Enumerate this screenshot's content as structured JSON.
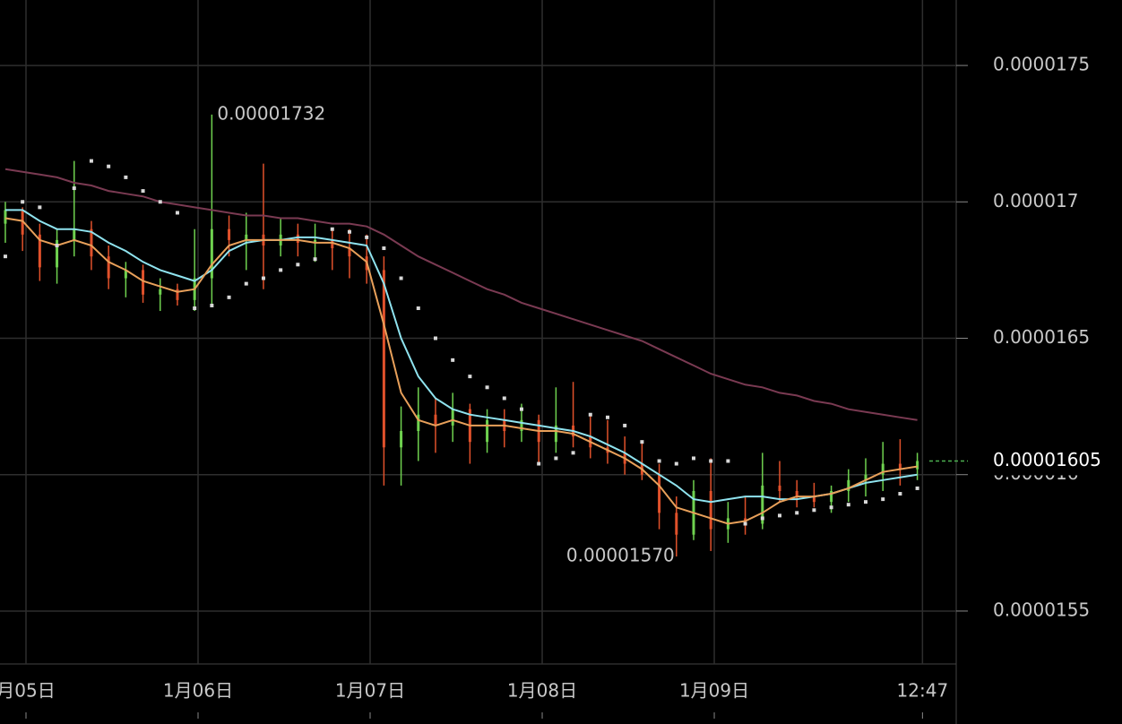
{
  "chart_data": {
    "type": "ohlc",
    "up_color": "#6fd14f",
    "down_color": "#e0512b",
    "x": [
      -0.12,
      -0.02,
      0.08,
      0.18,
      0.28,
      0.38,
      0.48,
      0.58,
      0.68,
      0.78,
      0.88,
      0.98,
      1.08,
      1.18,
      1.28,
      1.38,
      1.48,
      1.58,
      1.68,
      1.78,
      1.88,
      1.98,
      2.08,
      2.18,
      2.28,
      2.38,
      2.48,
      2.58,
      2.68,
      2.78,
      2.88,
      2.98,
      3.08,
      3.18,
      3.28,
      3.38,
      3.48,
      3.58,
      3.68,
      3.78,
      3.88,
      3.98,
      4.08,
      4.18,
      4.28,
      4.38,
      4.48,
      4.58,
      4.68,
      4.78,
      4.88,
      4.98,
      5.08,
      5.18
    ],
    "open": [
      1.692e-05,
      1.697e-05,
      1.688e-05,
      1.676e-05,
      1.686e-05,
      1.69e-05,
      1.68e-05,
      1.672e-05,
      1.675e-05,
      1.666e-05,
      1.668e-05,
      1.664e-05,
      1.672e-05,
      1.69e-05,
      1.686e-05,
      1.688e-05,
      1.684e-05,
      1.688e-05,
      1.685e-05,
      1.686e-05,
      1.683e-05,
      1.68e-05,
      1.675e-05,
      1.61e-05,
      1.616e-05,
      1.622e-05,
      1.618e-05,
      1.624e-05,
      1.612e-05,
      1.62e-05,
      1.616e-05,
      1.62e-05,
      1.612e-05,
      1.618e-05,
      1.614e-05,
      1.61e-05,
      1.608e-05,
      1.604e-05,
      1.6e-05,
      1.586e-05,
      1.578e-05,
      1.594e-05,
      1.58e-05,
      1.584e-05,
      1.582e-05,
      1.596e-05,
      1.594e-05,
      1.592e-05,
      1.59e-05,
      1.594e-05,
      1.598e-05,
      1.6e-05,
      1.604e-05,
      1.602e-05
    ],
    "high": [
      1.7e-05,
      1.698e-05,
      1.692e-05,
      1.69e-05,
      1.715e-05,
      1.693e-05,
      1.684e-05,
      1.678e-05,
      1.677e-05,
      1.672e-05,
      1.67e-05,
      1.69e-05,
      1.732e-05,
      1.695e-05,
      1.696e-05,
      1.714e-05,
      1.694e-05,
      1.692e-05,
      1.692e-05,
      1.69e-05,
      1.69e-05,
      1.688e-05,
      1.68e-05,
      1.625e-05,
      1.632e-05,
      1.628e-05,
      1.63e-05,
      1.626e-05,
      1.624e-05,
      1.624e-05,
      1.626e-05,
      1.622e-05,
      1.632e-05,
      1.634e-05,
      1.622e-05,
      1.62e-05,
      1.614e-05,
      1.612e-05,
      1.604e-05,
      1.592e-05,
      1.598e-05,
      1.606e-05,
      1.59e-05,
      1.592e-05,
      1.608e-05,
      1.605e-05,
      1.598e-05,
      1.597e-05,
      1.596e-05,
      1.602e-05,
      1.606e-05,
      1.612e-05,
      1.613e-05,
      1.608e-05
    ],
    "low": [
      1.685e-05,
      1.682e-05,
      1.671e-05,
      1.67e-05,
      1.68e-05,
      1.675e-05,
      1.668e-05,
      1.665e-05,
      1.663e-05,
      1.66e-05,
      1.662e-05,
      1.66e-05,
      1.662e-05,
      1.68e-05,
      1.675e-05,
      1.668e-05,
      1.68e-05,
      1.68e-05,
      1.678e-05,
      1.675e-05,
      1.672e-05,
      1.67e-05,
      1.596e-05,
      1.596e-05,
      1.605e-05,
      1.608e-05,
      1.612e-05,
      1.604e-05,
      1.608e-05,
      1.61e-05,
      1.612e-05,
      1.604e-05,
      1.608e-05,
      1.61e-05,
      1.606e-05,
      1.604e-05,
      1.6e-05,
      1.598e-05,
      1.58e-05,
      1.57e-05,
      1.576e-05,
      1.572e-05,
      1.575e-05,
      1.578e-05,
      1.58e-05,
      1.59e-05,
      1.588e-05,
      1.588e-05,
      1.586e-05,
      1.59e-05,
      1.592e-05,
      1.594e-05,
      1.596e-05,
      1.598e-05
    ],
    "close": [
      1.697e-05,
      1.688e-05,
      1.676e-05,
      1.686e-05,
      1.69e-05,
      1.68e-05,
      1.672e-05,
      1.675e-05,
      1.666e-05,
      1.668e-05,
      1.664e-05,
      1.672e-05,
      1.69e-05,
      1.686e-05,
      1.688e-05,
      1.684e-05,
      1.688e-05,
      1.685e-05,
      1.686e-05,
      1.683e-05,
      1.68e-05,
      1.675e-05,
      1.61e-05,
      1.616e-05,
      1.622e-05,
      1.618e-05,
      1.624e-05,
      1.612e-05,
      1.62e-05,
      1.616e-05,
      1.62e-05,
      1.612e-05,
      1.618e-05,
      1.614e-05,
      1.61e-05,
      1.608e-05,
      1.604e-05,
      1.6e-05,
      1.586e-05,
      1.578e-05,
      1.594e-05,
      1.58e-05,
      1.584e-05,
      1.582e-05,
      1.596e-05,
      1.594e-05,
      1.592e-05,
      1.59e-05,
      1.594e-05,
      1.598e-05,
      1.6e-05,
      1.604e-05,
      1.602e-05,
      1.605e-05
    ],
    "lines": [
      {
        "color": "#7a3a52",
        "values": [
          1.712e-05,
          1.711e-05,
          1.71e-05,
          1.709e-05,
          1.707e-05,
          1.706e-05,
          1.704e-05,
          1.703e-05,
          1.702e-05,
          1.7e-05,
          1.699e-05,
          1.698e-05,
          1.697e-05,
          1.696e-05,
          1.695e-05,
          1.695e-05,
          1.694e-05,
          1.694e-05,
          1.693e-05,
          1.692e-05,
          1.692e-05,
          1.691e-05,
          1.688e-05,
          1.684e-05,
          1.68e-05,
          1.677e-05,
          1.674e-05,
          1.671e-05,
          1.668e-05,
          1.666e-05,
          1.663e-05,
          1.661e-05,
          1.659e-05,
          1.657e-05,
          1.655e-05,
          1.653e-05,
          1.651e-05,
          1.649e-05,
          1.646e-05,
          1.643e-05,
          1.64e-05,
          1.637e-05,
          1.635e-05,
          1.633e-05,
          1.632e-05,
          1.63e-05,
          1.629e-05,
          1.627e-05,
          1.626e-05,
          1.624e-05,
          1.623e-05,
          1.622e-05,
          1.621e-05,
          1.62e-05
        ]
      },
      {
        "color": "#8fe3ef",
        "values": [
          1.697e-05,
          1.697e-05,
          1.693e-05,
          1.69e-05,
          1.69e-05,
          1.689e-05,
          1.685e-05,
          1.682e-05,
          1.678e-05,
          1.675e-05,
          1.673e-05,
          1.671e-05,
          1.675e-05,
          1.682e-05,
          1.685e-05,
          1.686e-05,
          1.686e-05,
          1.687e-05,
          1.687e-05,
          1.686e-05,
          1.685e-05,
          1.684e-05,
          1.67e-05,
          1.65e-05,
          1.636e-05,
          1.628e-05,
          1.624e-05,
          1.622e-05,
          1.621e-05,
          1.62e-05,
          1.619e-05,
          1.618e-05,
          1.617e-05,
          1.616e-05,
          1.614e-05,
          1.611e-05,
          1.608e-05,
          1.604e-05,
          1.6e-05,
          1.596e-05,
          1.591e-05,
          1.59e-05,
          1.591e-05,
          1.592e-05,
          1.592e-05,
          1.591e-05,
          1.591e-05,
          1.592e-05,
          1.593e-05,
          1.595e-05,
          1.597e-05,
          1.598e-05,
          1.599e-05,
          1.6e-05
        ]
      },
      {
        "color": "#e8a05a",
        "values": [
          1.694e-05,
          1.693e-05,
          1.686e-05,
          1.684e-05,
          1.686e-05,
          1.684e-05,
          1.678e-05,
          1.675e-05,
          1.671e-05,
          1.669e-05,
          1.667e-05,
          1.668e-05,
          1.677e-05,
          1.684e-05,
          1.686e-05,
          1.686e-05,
          1.686e-05,
          1.686e-05,
          1.685e-05,
          1.685e-05,
          1.683e-05,
          1.678e-05,
          1.655e-05,
          1.63e-05,
          1.62e-05,
          1.618e-05,
          1.62e-05,
          1.618e-05,
          1.618e-05,
          1.618e-05,
          1.617e-05,
          1.616e-05,
          1.616e-05,
          1.615e-05,
          1.612e-05,
          1.609e-05,
          1.606e-05,
          1.602e-05,
          1.596e-05,
          1.588e-05,
          1.586e-05,
          1.584e-05,
          1.582e-05,
          1.583e-05,
          1.586e-05,
          1.59e-05,
          1.592e-05,
          1.592e-05,
          1.593e-05,
          1.595e-05,
          1.598e-05,
          1.601e-05,
          1.602e-05,
          1.603e-05
        ]
      }
    ],
    "sar": {
      "color": "#d8d8d8",
      "values": [
        1.68e-05,
        1.7e-05,
        1.698e-05,
        1.684e-05,
        1.705e-05,
        1.715e-05,
        1.713e-05,
        1.709e-05,
        1.704e-05,
        1.7e-05,
        1.696e-05,
        1.661e-05,
        1.662e-05,
        1.665e-05,
        1.67e-05,
        1.672e-05,
        1.675e-05,
        1.677e-05,
        1.679e-05,
        1.69e-05,
        1.689e-05,
        1.687e-05,
        1.683e-05,
        1.672e-05,
        1.661e-05,
        1.65e-05,
        1.642e-05,
        1.636e-05,
        1.632e-05,
        1.628e-05,
        1.624e-05,
        1.604e-05,
        1.606e-05,
        1.608e-05,
        1.622e-05,
        1.621e-05,
        1.618e-05,
        1.612e-05,
        1.605e-05,
        1.604e-05,
        1.606e-05,
        1.605e-05,
        1.605e-05,
        1.582e-05,
        1.584e-05,
        1.585e-05,
        1.586e-05,
        1.587e-05,
        1.588e-05,
        1.589e-05,
        1.59e-05,
        1.591e-05,
        1.593e-05,
        1.595e-05
      ]
    },
    "xlim": [
      -0.151,
      5.406
    ],
    "xticks": [
      {
        "value": 0,
        "label": "月05日"
      },
      {
        "value": 1,
        "label": "1月06日"
      },
      {
        "value": 2,
        "label": "1月07日"
      },
      {
        "value": 3,
        "label": "1月08日"
      },
      {
        "value": 4,
        "label": "1月09日"
      },
      {
        "value": 5.21,
        "label": "12:47"
      }
    ],
    "ylim": [
      1.5306e-05,
      1.774e-05
    ],
    "yticks": [
      1.75e-05,
      1.7e-05,
      1.65e-05,
      1.6e-05,
      1.55e-05
    ],
    "grid": true,
    "annotations": [
      {
        "value": 1.732e-05,
        "label": "0.00001732",
        "x": 1.08
      },
      {
        "value": 1.57e-05,
        "label": "0.00001570",
        "x": 3.78
      }
    ],
    "last_price": {
      "value": 1.605e-05,
      "label": "0.00001605",
      "color": "#4caf50"
    }
  }
}
